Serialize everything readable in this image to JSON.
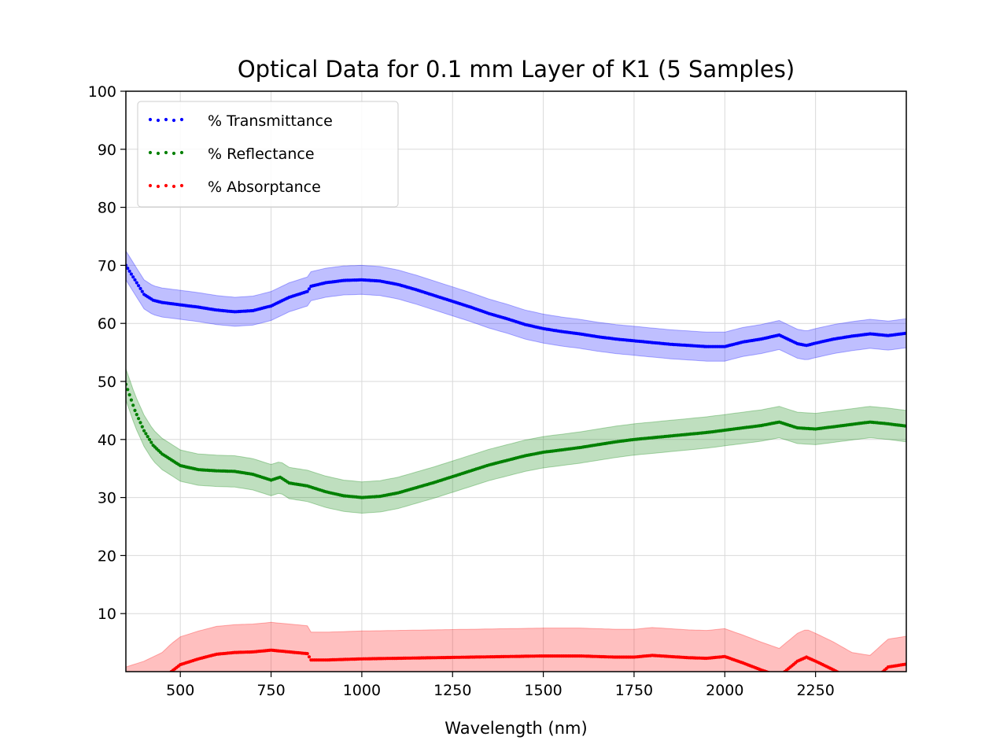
{
  "chart_data": {
    "type": "scatter",
    "title": "Optical Data for 0.1 mm Layer of K1 (5 Samples)",
    "xlabel": "Wavelength (nm)",
    "ylabel": "",
    "xlim": [
      350,
      2500
    ],
    "ylim": [
      0,
      100
    ],
    "xticks": [
      500,
      750,
      1000,
      1250,
      1500,
      1750,
      2000,
      2250
    ],
    "yticks": [
      10,
      20,
      30,
      40,
      50,
      60,
      70,
      80,
      90,
      100
    ],
    "grid": true,
    "legend_position": "top-left",
    "series": [
      {
        "name": "% Transmittance",
        "color": "#0000ff",
        "band_color": "#0000ff",
        "band_halfwidth": 2.5,
        "x": [
          350,
          375,
          400,
          425,
          450,
          500,
          550,
          600,
          650,
          700,
          750,
          800,
          850,
          860,
          900,
          950,
          1000,
          1050,
          1100,
          1150,
          1200,
          1250,
          1300,
          1350,
          1400,
          1450,
          1500,
          1550,
          1600,
          1650,
          1700,
          1750,
          1800,
          1850,
          1900,
          1950,
          2000,
          2050,
          2100,
          2150,
          2200,
          2225,
          2250,
          2300,
          2350,
          2400,
          2450,
          2500
        ],
        "y": [
          70,
          67.5,
          65,
          64,
          63.6,
          63.2,
          62.8,
          62.3,
          62,
          62.2,
          63,
          64.5,
          65.5,
          66.4,
          67,
          67.4,
          67.5,
          67.3,
          66.7,
          65.8,
          64.8,
          63.8,
          62.8,
          61.7,
          60.8,
          59.8,
          59.1,
          58.6,
          58.2,
          57.7,
          57.3,
          57,
          56.7,
          56.4,
          56.2,
          56,
          56,
          56.8,
          57.3,
          58,
          56.5,
          56.2,
          56.6,
          57.3,
          57.8,
          58.2,
          57.9,
          58.3
        ]
      },
      {
        "name": "% Reflectance",
        "color": "#008000",
        "band_color": "#008000",
        "band_halfwidth": 2.7,
        "x": [
          350,
          375,
          400,
          425,
          450,
          500,
          550,
          600,
          650,
          700,
          750,
          775,
          800,
          850,
          900,
          950,
          1000,
          1050,
          1100,
          1150,
          1200,
          1250,
          1300,
          1350,
          1400,
          1450,
          1500,
          1550,
          1600,
          1650,
          1700,
          1750,
          1800,
          1850,
          1900,
          1950,
          2000,
          2050,
          2100,
          2150,
          2200,
          2250,
          2300,
          2350,
          2400,
          2450,
          2500
        ],
        "y": [
          49.5,
          45,
          41.5,
          39,
          37.5,
          35.5,
          34.8,
          34.6,
          34.5,
          34,
          33,
          33.5,
          32.5,
          32,
          31,
          30.3,
          30,
          30.2,
          30.8,
          31.7,
          32.6,
          33.6,
          34.6,
          35.6,
          36.4,
          37.2,
          37.8,
          38.2,
          38.6,
          39.1,
          39.6,
          40,
          40.3,
          40.6,
          40.9,
          41.2,
          41.6,
          42,
          42.4,
          43,
          42,
          41.8,
          42.2,
          42.6,
          43,
          42.7,
          42.3
        ]
      },
      {
        "name": "% Absorptance",
        "color": "#ff0000",
        "band_color": "#ff0000",
        "band_halfwidth": 4.8,
        "x": [
          350,
          400,
          450,
          475,
          500,
          550,
          600,
          650,
          700,
          750,
          800,
          850,
          860,
          900,
          950,
          1000,
          1100,
          1200,
          1300,
          1400,
          1500,
          1600,
          1700,
          1750,
          1800,
          1850,
          1900,
          1950,
          2000,
          2050,
          2100,
          2150,
          2200,
          2225,
          2250,
          2300,
          2350,
          2400,
          2450,
          2500
        ],
        "y": [
          -4,
          -3,
          -1.5,
          0,
          1.2,
          2.2,
          3,
          3.3,
          3.4,
          3.7,
          3.4,
          3.1,
          2,
          2,
          2.1,
          2.2,
          2.3,
          2.4,
          2.5,
          2.6,
          2.7,
          2.7,
          2.5,
          2.5,
          2.8,
          2.6,
          2.4,
          2.3,
          2.6,
          1.5,
          0.3,
          -0.8,
          1.8,
          2.5,
          1.8,
          0.3,
          -1.5,
          -2,
          0.8,
          1.3
        ]
      }
    ]
  }
}
